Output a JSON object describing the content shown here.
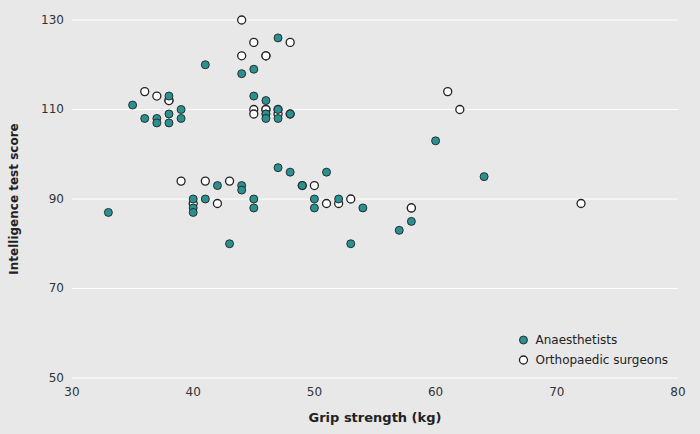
{
  "chart_data": {
    "type": "scatter",
    "xlabel": "Grip strength (kg)",
    "ylabel": "Intelligence test score",
    "xlim": [
      30,
      80
    ],
    "ylim": [
      50,
      130
    ],
    "xticks": [
      30,
      40,
      50,
      60,
      70,
      80
    ],
    "yticks": [
      50,
      70,
      90,
      110,
      130
    ],
    "grid": "y",
    "legend": "lower right",
    "series": [
      {
        "name": "Anaesthetists",
        "color": "#2a9090",
        "marker": "circle",
        "x": [
          33,
          35,
          36,
          37,
          37,
          38,
          38,
          38,
          39,
          39,
          40,
          40,
          40,
          41,
          41,
          42,
          43,
          44,
          44,
          44,
          45,
          45,
          45,
          45,
          46,
          46,
          46,
          46,
          47,
          47,
          47,
          47,
          48,
          48,
          49,
          50,
          50,
          51,
          52,
          53,
          54,
          57,
          58,
          60,
          64
        ],
        "values": [
          87,
          111,
          108,
          108,
          107,
          113,
          109,
          107,
          110,
          108,
          90,
          88,
          87,
          120,
          90,
          93,
          80,
          118,
          93,
          92,
          119,
          113,
          90,
          88,
          112,
          109,
          109,
          108,
          126,
          110,
          108,
          97,
          109,
          96,
          93,
          90,
          88,
          96,
          90,
          80,
          88,
          83,
          85,
          103,
          95
        ]
      },
      {
        "name": "Orthopaedic surgeons",
        "color": "white",
        "marker": "circle",
        "x": [
          36,
          37,
          38,
          38,
          39,
          40,
          41,
          42,
          43,
          44,
          44,
          45,
          45,
          45,
          46,
          46,
          46,
          46,
          47,
          47,
          48,
          48,
          49,
          50,
          51,
          52,
          53,
          58,
          58,
          61,
          62,
          72
        ],
        "values": [
          114,
          113,
          112,
          112,
          94,
          89,
          94,
          89,
          94,
          130,
          122,
          125,
          110,
          109,
          122,
          122,
          110,
          110,
          110,
          109,
          125,
          109,
          93,
          93,
          89,
          89,
          90,
          88,
          88,
          114,
          110,
          89
        ]
      }
    ]
  }
}
